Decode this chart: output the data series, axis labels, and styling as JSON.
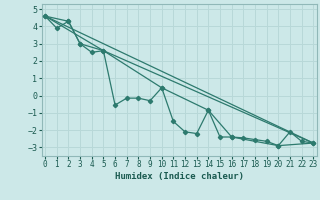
{
  "xlabel": "Humidex (Indice chaleur)",
  "bg_color": "#cce8e8",
  "grid_color": "#b8d8d8",
  "line_color": "#2d7a6e",
  "line1": {
    "x": [
      0,
      1,
      2,
      3,
      4,
      5,
      6,
      7,
      8,
      9,
      10,
      11,
      12,
      13,
      14,
      15,
      16,
      17,
      18,
      19,
      20,
      21,
      22,
      23
    ],
    "y": [
      4.6,
      3.9,
      4.3,
      3.0,
      2.5,
      2.6,
      -0.55,
      -0.15,
      -0.15,
      -0.3,
      0.45,
      -1.5,
      -2.1,
      -2.2,
      -0.85,
      -2.4,
      -2.4,
      -2.45,
      -2.55,
      -2.65,
      -2.9,
      -2.1,
      -2.65,
      -2.75
    ]
  },
  "line2": {
    "x": [
      0,
      2,
      3,
      5,
      10,
      14,
      16,
      20,
      23
    ],
    "y": [
      4.6,
      4.3,
      3.0,
      2.6,
      0.45,
      -0.85,
      -2.4,
      -2.9,
      -2.75
    ]
  },
  "line3": {
    "x": [
      0,
      5,
      23
    ],
    "y": [
      4.6,
      2.6,
      -2.75
    ]
  },
  "line4": {
    "x": [
      0,
      23
    ],
    "y": [
      4.6,
      -2.75
    ]
  },
  "ylim": [
    -3.5,
    5.3
  ],
  "xlim": [
    -0.3,
    23.3
  ],
  "yticks": [
    -3,
    -2,
    -1,
    0,
    1,
    2,
    3,
    4,
    5
  ],
  "xticks": [
    0,
    1,
    2,
    3,
    4,
    5,
    6,
    7,
    8,
    9,
    10,
    11,
    12,
    13,
    14,
    15,
    16,
    17,
    18,
    19,
    20,
    21,
    22,
    23
  ]
}
